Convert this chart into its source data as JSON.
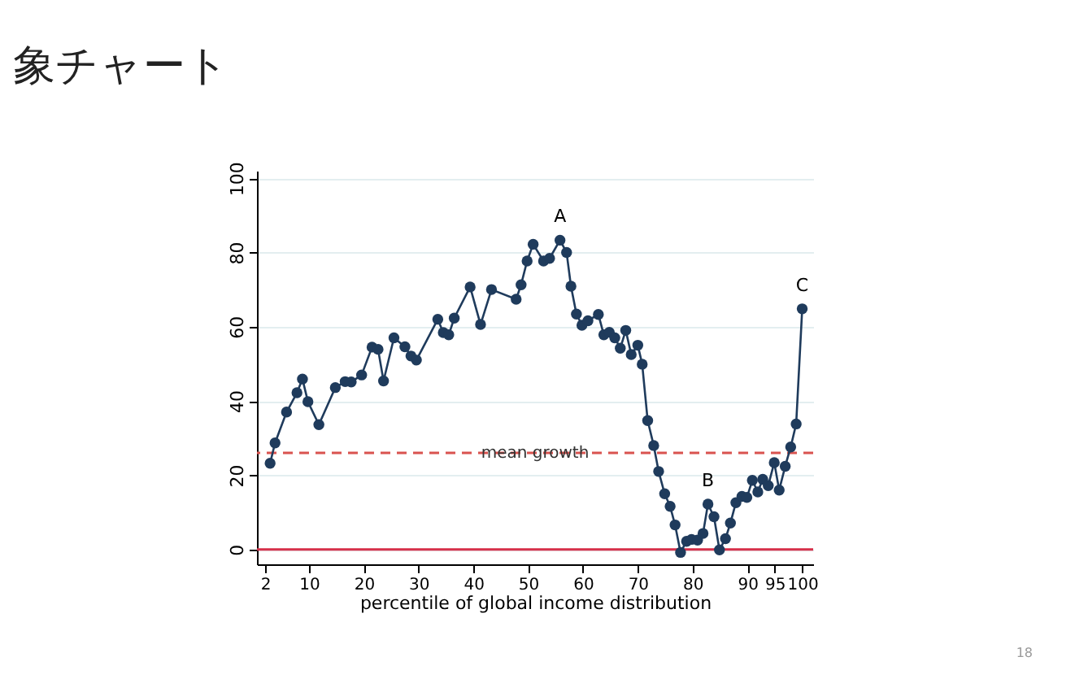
{
  "chart_data": {
    "type": "line",
    "title": "象チャート",
    "xlabel": "percentile of global income distribution",
    "x": [
      2.9,
      3.8,
      5.9,
      7.8,
      8.8,
      9.8,
      11.8,
      14.8,
      16.6,
      17.7,
      19.6,
      21.5,
      22.6,
      23.6,
      25.5,
      27.5,
      28.6,
      29.6,
      33.5,
      34.5,
      35.5,
      36.5,
      39.4,
      41.3,
      43.3,
      47.8,
      48.7,
      49.8,
      50.9,
      52.8,
      53.9,
      55.8,
      57,
      57.8,
      58.8,
      59.8,
      60.9,
      62.8,
      63.8,
      64.8,
      65.8,
      66.8,
      67.8,
      68.8,
      70,
      70.8,
      71.8,
      72.9,
      73.8,
      74.9,
      75.9,
      76.8,
      77.8,
      78.9,
      79.8,
      80.9,
      81.9,
      82.8,
      83.9,
      84.9,
      86,
      86.9,
      87.9,
      89,
      89.9,
      90.9,
      91.9,
      92.8,
      93.8,
      94.9,
      95.8,
      96.9,
      97.9,
      98.9,
      100
    ],
    "series": [
      {
        "color": "#1f3b5c",
        "values": [
          23.2,
          28.7,
          37,
          42.2,
          45.9,
          39.8,
          33.6,
          43.6,
          45.2,
          45.1,
          47,
          54.5,
          53.9,
          45.4,
          57,
          54.6,
          52.1,
          51,
          62,
          58.4,
          57.8,
          62.3,
          70.7,
          60.6,
          70,
          67.4,
          71.3,
          77.7,
          82.2,
          77.7,
          78.4,
          83.3,
          80,
          70.9,
          63.4,
          60.4,
          61.6,
          63.3,
          57.8,
          58.5,
          57,
          54.2,
          59,
          52.5,
          55,
          49.9,
          34.7,
          28,
          21,
          15,
          11.6,
          6.6,
          -0.8,
          2.2,
          2.7,
          2.5,
          4.3,
          12.2,
          8.8,
          -0.1,
          2.9,
          7.1,
          12.6,
          14.3,
          14,
          18.6,
          15.5,
          18.9,
          17.2,
          23.4,
          16,
          22.4,
          27.6,
          33.8,
          64.8
        ]
      }
    ],
    "xlim": [
      0.5,
      102
    ],
    "xticks": [
      2,
      10,
      20,
      30,
      40,
      50,
      60,
      70,
      80,
      90,
      95,
      100
    ],
    "ylim": [
      -4,
      102
    ],
    "yticks": [
      0,
      20,
      40,
      60,
      80,
      100
    ],
    "grid": "y",
    "marker": "circle",
    "line_style": "solid",
    "ref_lines": [
      {
        "axis": "y",
        "value": 26,
        "label": "mean growth",
        "color": "#d9534f",
        "line_style": "dashed"
      },
      {
        "axis": "y",
        "value": 0,
        "color": "#d6304a",
        "line_style": "solid"
      }
    ],
    "annotations": [
      {
        "text": "A",
        "x": 55.8,
        "y": 83.3
      },
      {
        "text": "B",
        "x": 82.8,
        "y": 12.2
      },
      {
        "text": "C",
        "x": 100,
        "y": 64.8
      },
      "18"
    ]
  }
}
